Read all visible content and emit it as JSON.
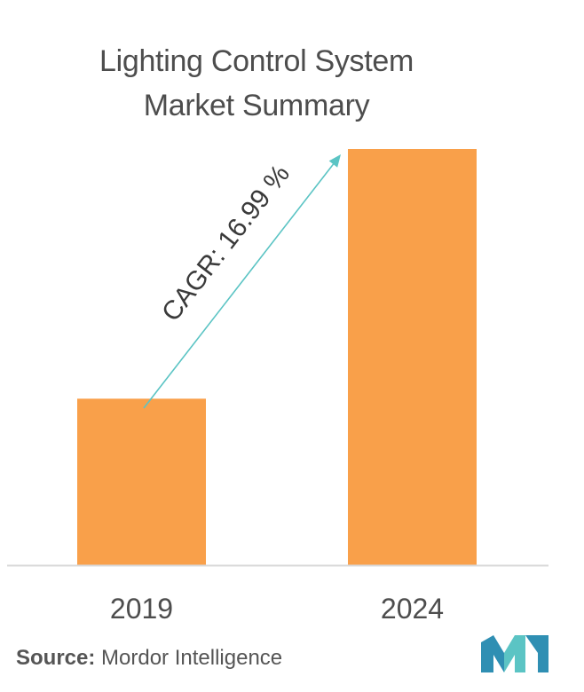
{
  "chart_data": {
    "type": "bar",
    "title_lines": [
      "Lighting Control System",
      "Market Summary"
    ],
    "categories": [
      "2019",
      "2024"
    ],
    "values": [
      0.4,
      1.0
    ],
    "value_note": "relative bar heights, no y-axis printed",
    "annotation": "CAGR: 16.99 %",
    "bar_color": "#f9a04a",
    "arrow_color": "#5bc4c4",
    "axis_color": "#d9d9d9",
    "grid": false
  },
  "footer": {
    "source_label": "Source:",
    "source_text": "Mordor Intelligence"
  },
  "logo": {
    "icon": "mordor-intelligence-logo-icon",
    "colors": [
      "#2f8fb3",
      "#5bc4c4"
    ]
  }
}
